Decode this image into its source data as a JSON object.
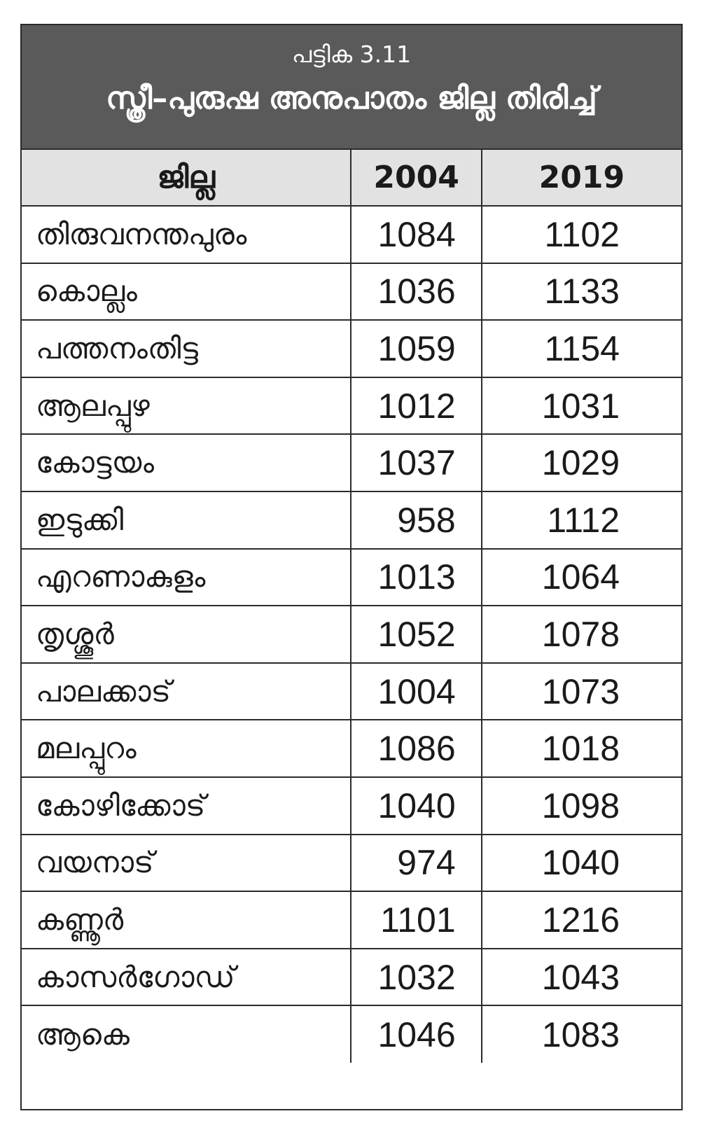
{
  "caption": "പട്ടിക 3.11",
  "title": "സ്ത്രീ–പുരുഷ അനുപാതം ജില്ല തിരിച്ച്",
  "columns": [
    "ജില്ല",
    "2004",
    "2019"
  ],
  "rows": [
    {
      "district": "തിരുവനന്തപുരം",
      "y2004": "1084",
      "y2019": "1102"
    },
    {
      "district": "കൊല്ലം",
      "y2004": "1036",
      "y2019": "1133"
    },
    {
      "district": "പത്തനംതിട്ട",
      "y2004": "1059",
      "y2019": "1154"
    },
    {
      "district": "ആലപ്പുഴ",
      "y2004": "1012",
      "y2019": "1031"
    },
    {
      "district": "കോട്ടയം",
      "y2004": "1037",
      "y2019": "1029"
    },
    {
      "district": "ഇടുക്കി",
      "y2004": "958",
      "y2019": "1112"
    },
    {
      "district": "എറണാകുളം",
      "y2004": "1013",
      "y2019": "1064"
    },
    {
      "district": "തൃശ്ശൂർ",
      "y2004": "1052",
      "y2019": "1078"
    },
    {
      "district": "പാലക്കാട്",
      "y2004": "1004",
      "y2019": "1073"
    },
    {
      "district": "മലപ്പുറം",
      "y2004": "1086",
      "y2019": "1018"
    },
    {
      "district": "കോഴിക്കോട്",
      "y2004": "1040",
      "y2019": "1098"
    },
    {
      "district": "വയനാട്",
      "y2004": "974",
      "y2019": "1040"
    },
    {
      "district": "കണ്ണൂർ",
      "y2004": "1101",
      "y2019": "1216"
    },
    {
      "district": "കാസർഗോഡ്",
      "y2004": "1032",
      "y2019": "1043"
    },
    {
      "district": "ആകെ",
      "y2004": "1046",
      "y2019": "1083"
    }
  ],
  "colors": {
    "title_background": "#5a5a5a",
    "header_background": "#e2e2e2",
    "border": "#2b2b2b"
  }
}
